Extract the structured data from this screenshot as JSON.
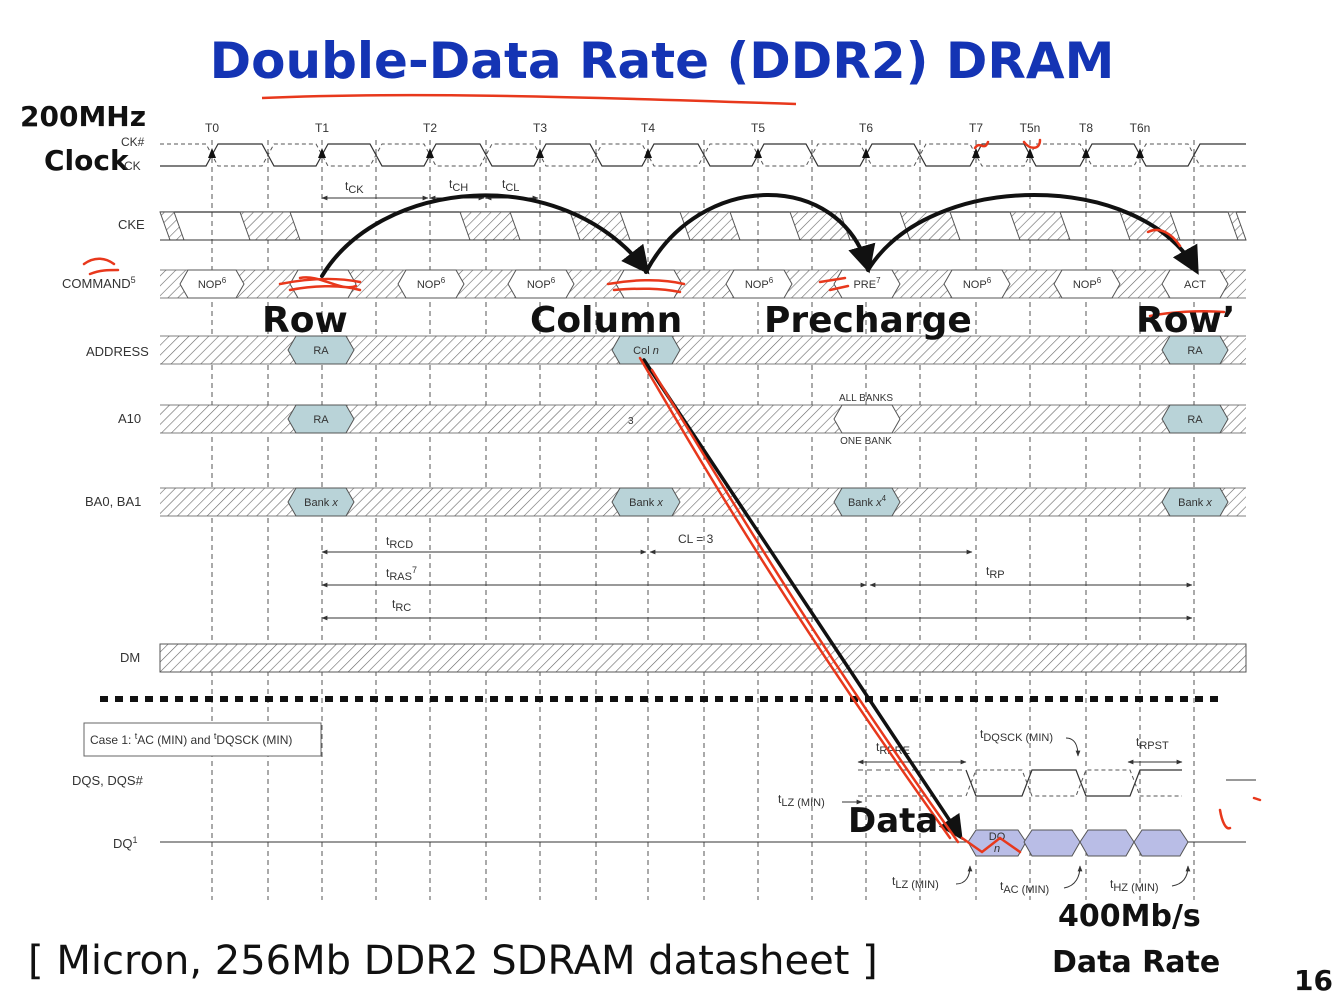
{
  "title": "Double-Data Rate (DDR2) DRAM",
  "clock_label": {
    "line1": "200MHz",
    "line2": "Clock"
  },
  "clock_ticks": [
    "T0",
    "T1",
    "T2",
    "T3",
    "T4",
    "T5",
    "T6",
    "T7",
    "T5n",
    "T8",
    "T6n"
  ],
  "signals": {
    "ck_hash": "CK#",
    "ck": "CK",
    "cke": "CKE",
    "command": "COMMAND",
    "command_sup": "5",
    "address": "ADDRESS",
    "a10": "A10",
    "ba": "BA0, BA1",
    "dm": "DM",
    "dqs": "DQS, DQS#",
    "dq": "DQ",
    "dq_sup": "1"
  },
  "commands": {
    "nop": "NOP",
    "nop_sup": "6",
    "pre": "PRE",
    "pre_sup": "7",
    "act": "ACT"
  },
  "addr_values": {
    "ra": "RA",
    "col": "Col",
    "col_n": "n",
    "a10_note": "3",
    "all_banks": "ALL BANKS",
    "one_bank": "ONE BANK",
    "bank": "Bank",
    "bank_x": "x",
    "bank_sup": "4"
  },
  "timing": {
    "tck": "CK",
    "tch": "CH",
    "tcl": "CL",
    "trcd": "RCD",
    "cl3": "CL = 3",
    "tras": "RAS",
    "tras_sup": "7",
    "trp": "RP",
    "trc": "RC",
    "trpre": "RPRE",
    "tdqsck": "DQSCK (MIN)",
    "trpst": "RPST",
    "tlz_min": "LZ (MIN)",
    "tac_min": "AC (MIN)",
    "thz_min": "HZ (MIN)",
    "t": "t"
  },
  "case_box": {
    "p1": "Case 1: ",
    "ac": "AC (MIN) and ",
    "dqsck": "DQSCK (MIN)"
  },
  "dq_data": {
    "do": "DO",
    "n": "n"
  },
  "annotations": {
    "row": "Row",
    "column": "Column",
    "precharge": "Precharge",
    "row_prime": "Row’",
    "data": "Data",
    "rate1": "400Mb/s",
    "rate2": "Data Rate"
  },
  "citation": "[ Micron, 256Mb DDR2 SDRAM datasheet ]",
  "page_number": "16",
  "colors": {
    "title": "#1434b4",
    "ink": "#e8381c",
    "pen": "#111111",
    "cell": "#b9d3d8",
    "dq_cell": "#b9bde6"
  }
}
